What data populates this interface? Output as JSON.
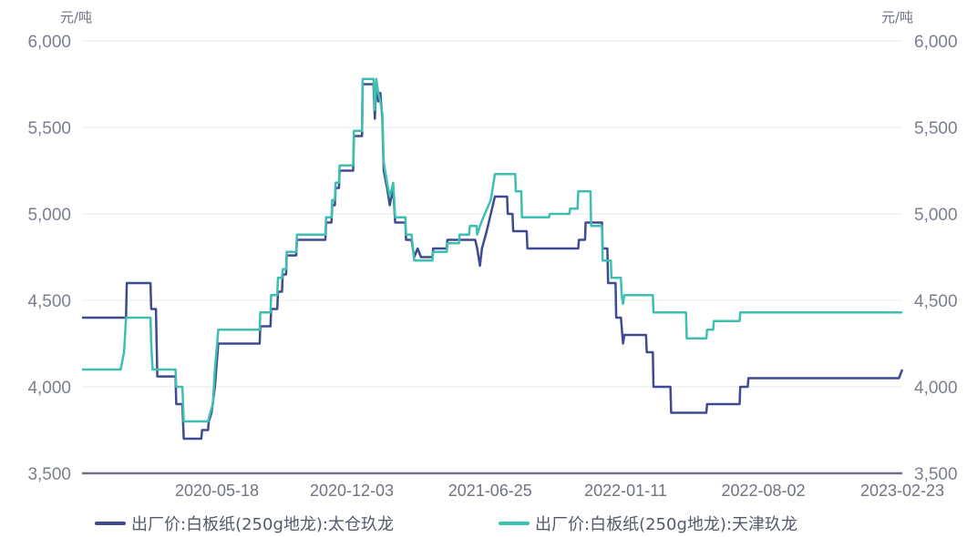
{
  "chart_data": {
    "type": "line",
    "y_unit_left": "元/吨",
    "y_unit_right": "元/吨",
    "ylim": [
      3500,
      6000
    ],
    "y_ticks": [
      "3,500",
      "4,000",
      "4,500",
      "5,000",
      "5,500",
      "6,000"
    ],
    "y_tick_values": [
      3500,
      4000,
      4500,
      5000,
      5500,
      6000
    ],
    "x_range": [
      "2019-11-01",
      "2023-02-23"
    ],
    "x_ticks": [
      "2020-05-18",
      "2020-12-03",
      "2021-06-25",
      "2022-01-11",
      "2022-08-02",
      "2023-02-23"
    ],
    "grid": true,
    "legend_position": "bottom",
    "series": [
      {
        "name": "出厂价:白板纸(250g地龙):太仓玖龙",
        "color": "#3f4a93",
        "points": [
          [
            "2019-11-01",
            4400
          ],
          [
            "2020-01-05",
            4400
          ],
          [
            "2020-01-06",
            4600
          ],
          [
            "2020-02-10",
            4600
          ],
          [
            "2020-02-11",
            4450
          ],
          [
            "2020-02-18",
            4450
          ],
          [
            "2020-02-20",
            4060
          ],
          [
            "2020-03-18",
            4060
          ],
          [
            "2020-03-19",
            3900
          ],
          [
            "2020-03-28",
            3900
          ],
          [
            "2020-03-30",
            3700
          ],
          [
            "2020-04-25",
            3700
          ],
          [
            "2020-04-26",
            3750
          ],
          [
            "2020-05-05",
            3750
          ],
          [
            "2020-05-06",
            3800
          ],
          [
            "2020-05-10",
            3850
          ],
          [
            "2020-05-15",
            4000
          ],
          [
            "2020-05-20",
            4250
          ],
          [
            "2020-07-20",
            4250
          ],
          [
            "2020-07-21",
            4350
          ],
          [
            "2020-08-05",
            4350
          ],
          [
            "2020-08-06",
            4450
          ],
          [
            "2020-08-15",
            4450
          ],
          [
            "2020-08-16",
            4550
          ],
          [
            "2020-08-22",
            4550
          ],
          [
            "2020-08-23",
            4650
          ],
          [
            "2020-08-28",
            4650
          ],
          [
            "2020-08-29",
            4760
          ],
          [
            "2020-09-12",
            4760
          ],
          [
            "2020-09-13",
            4850
          ],
          [
            "2020-10-25",
            4850
          ],
          [
            "2020-10-26",
            4950
          ],
          [
            "2020-11-03",
            4950
          ],
          [
            "2020-11-04",
            5050
          ],
          [
            "2020-11-08",
            5050
          ],
          [
            "2020-11-09",
            5150
          ],
          [
            "2020-11-14",
            5150
          ],
          [
            "2020-11-15",
            5250
          ],
          [
            "2020-12-05",
            5250
          ],
          [
            "2020-12-06",
            5450
          ],
          [
            "2020-12-18",
            5450
          ],
          [
            "2020-12-19",
            5750
          ],
          [
            "2021-01-04",
            5750
          ],
          [
            "2021-01-06",
            5550
          ],
          [
            "2021-01-08",
            5750
          ],
          [
            "2021-01-11",
            5650
          ],
          [
            "2021-01-14",
            5700
          ],
          [
            "2021-01-17",
            5550
          ],
          [
            "2021-01-19",
            5250
          ],
          [
            "2021-01-24",
            5150
          ],
          [
            "2021-01-28",
            5050
          ],
          [
            "2021-02-02",
            5150
          ],
          [
            "2021-02-05",
            4950
          ],
          [
            "2021-02-20",
            4950
          ],
          [
            "2021-02-21",
            4850
          ],
          [
            "2021-03-01",
            4850
          ],
          [
            "2021-03-05",
            4750
          ],
          [
            "2021-03-10",
            4800
          ],
          [
            "2021-03-15",
            4750
          ],
          [
            "2021-04-01",
            4750
          ],
          [
            "2021-04-02",
            4800
          ],
          [
            "2021-04-22",
            4800
          ],
          [
            "2021-04-23",
            4850
          ],
          [
            "2021-05-25",
            4850
          ],
          [
            "2021-06-03",
            4850
          ],
          [
            "2021-06-06",
            4800
          ],
          [
            "2021-06-10",
            4700
          ],
          [
            "2021-06-13",
            4800
          ],
          [
            "2021-06-20",
            4900
          ],
          [
            "2021-06-26",
            5000
          ],
          [
            "2021-07-02",
            5100
          ],
          [
            "2021-07-20",
            5100
          ],
          [
            "2021-07-21",
            5000
          ],
          [
            "2021-07-28",
            5000
          ],
          [
            "2021-07-29",
            4900
          ],
          [
            "2021-08-18",
            4900
          ],
          [
            "2021-08-19",
            4800
          ],
          [
            "2021-11-02",
            4800
          ],
          [
            "2021-11-03",
            4850
          ],
          [
            "2021-11-12",
            4850
          ],
          [
            "2021-11-13",
            4950
          ],
          [
            "2021-12-07",
            4950
          ],
          [
            "2021-12-08",
            4800
          ],
          [
            "2021-12-15",
            4800
          ],
          [
            "2021-12-16",
            4600
          ],
          [
            "2021-12-27",
            4600
          ],
          [
            "2021-12-28",
            4400
          ],
          [
            "2022-01-04",
            4400
          ],
          [
            "2022-01-07",
            4250
          ],
          [
            "2022-01-09",
            4300
          ],
          [
            "2022-02-10",
            4300
          ],
          [
            "2022-02-11",
            4200
          ],
          [
            "2022-02-20",
            4200
          ],
          [
            "2022-02-21",
            4000
          ],
          [
            "2022-03-18",
            4000
          ],
          [
            "2022-03-19",
            3850
          ],
          [
            "2022-05-10",
            3850
          ],
          [
            "2022-05-11",
            3900
          ],
          [
            "2022-06-28",
            3900
          ],
          [
            "2022-06-29",
            4000
          ],
          [
            "2022-07-10",
            4000
          ],
          [
            "2022-07-11",
            4050
          ],
          [
            "2023-02-18",
            4050
          ],
          [
            "2023-02-23",
            4100
          ]
        ]
      },
      {
        "name": "出厂价:白板纸(250g地龙):天津玖龙",
        "color": "#3dbfb2",
        "points": [
          [
            "2019-11-01",
            4100
          ],
          [
            "2019-12-28",
            4100
          ],
          [
            "2020-01-02",
            4200
          ],
          [
            "2020-01-05",
            4400
          ],
          [
            "2020-02-10",
            4400
          ],
          [
            "2020-02-11",
            4250
          ],
          [
            "2020-02-13",
            4100
          ],
          [
            "2020-03-18",
            4100
          ],
          [
            "2020-03-19",
            4000
          ],
          [
            "2020-03-28",
            4000
          ],
          [
            "2020-03-30",
            3800
          ],
          [
            "2020-05-05",
            3800
          ],
          [
            "2020-05-08",
            3850
          ],
          [
            "2020-05-12",
            3900
          ],
          [
            "2020-05-15",
            4100
          ],
          [
            "2020-05-20",
            4330
          ],
          [
            "2020-07-20",
            4330
          ],
          [
            "2020-07-21",
            4430
          ],
          [
            "2020-08-05",
            4430
          ],
          [
            "2020-08-06",
            4530
          ],
          [
            "2020-08-15",
            4530
          ],
          [
            "2020-08-16",
            4630
          ],
          [
            "2020-08-22",
            4630
          ],
          [
            "2020-08-23",
            4680
          ],
          [
            "2020-08-28",
            4680
          ],
          [
            "2020-08-29",
            4780
          ],
          [
            "2020-09-12",
            4780
          ],
          [
            "2020-09-13",
            4880
          ],
          [
            "2020-10-25",
            4880
          ],
          [
            "2020-10-26",
            4980
          ],
          [
            "2020-11-03",
            4980
          ],
          [
            "2020-11-04",
            5080
          ],
          [
            "2020-11-08",
            5080
          ],
          [
            "2020-11-09",
            5180
          ],
          [
            "2020-11-14",
            5180
          ],
          [
            "2020-11-15",
            5280
          ],
          [
            "2020-12-05",
            5280
          ],
          [
            "2020-12-06",
            5480
          ],
          [
            "2020-12-18",
            5480
          ],
          [
            "2020-12-19",
            5780
          ],
          [
            "2021-01-04",
            5780
          ],
          [
            "2021-01-06",
            5600
          ],
          [
            "2021-01-08",
            5780
          ],
          [
            "2021-01-11",
            5700
          ],
          [
            "2021-01-14",
            5650
          ],
          [
            "2021-01-17",
            5580
          ],
          [
            "2021-01-19",
            5300
          ],
          [
            "2021-01-24",
            5180
          ],
          [
            "2021-01-28",
            5100
          ],
          [
            "2021-02-02",
            5180
          ],
          [
            "2021-02-05",
            4980
          ],
          [
            "2021-02-20",
            4980
          ],
          [
            "2021-02-21",
            4880
          ],
          [
            "2021-03-01",
            4880
          ],
          [
            "2021-03-05",
            4730
          ],
          [
            "2021-04-01",
            4730
          ],
          [
            "2021-04-02",
            4780
          ],
          [
            "2021-04-22",
            4780
          ],
          [
            "2021-04-23",
            4830
          ],
          [
            "2021-05-10",
            4830
          ],
          [
            "2021-05-11",
            4880
          ],
          [
            "2021-05-25",
            4880
          ],
          [
            "2021-05-26",
            4930
          ],
          [
            "2021-06-05",
            4930
          ],
          [
            "2021-06-06",
            4880
          ],
          [
            "2021-06-10",
            4930
          ],
          [
            "2021-06-15",
            4980
          ],
          [
            "2021-06-26",
            5080
          ],
          [
            "2021-07-02",
            5230
          ],
          [
            "2021-08-01",
            5230
          ],
          [
            "2021-08-02",
            5130
          ],
          [
            "2021-08-10",
            5130
          ],
          [
            "2021-08-11",
            4980
          ],
          [
            "2021-09-20",
            4980
          ],
          [
            "2021-09-21",
            5000
          ],
          [
            "2021-10-20",
            5000
          ],
          [
            "2021-10-21",
            5030
          ],
          [
            "2021-11-01",
            5030
          ],
          [
            "2021-11-02",
            5130
          ],
          [
            "2021-11-20",
            5130
          ],
          [
            "2021-11-21",
            4930
          ],
          [
            "2021-12-07",
            4930
          ],
          [
            "2021-12-08",
            4730
          ],
          [
            "2021-12-20",
            4730
          ],
          [
            "2021-12-21",
            4630
          ],
          [
            "2022-01-04",
            4630
          ],
          [
            "2022-01-05",
            4530
          ],
          [
            "2022-01-07",
            4480
          ],
          [
            "2022-01-09",
            4530
          ],
          [
            "2022-02-20",
            4530
          ],
          [
            "2022-02-21",
            4430
          ],
          [
            "2022-04-10",
            4430
          ],
          [
            "2022-04-11",
            4280
          ],
          [
            "2022-05-10",
            4280
          ],
          [
            "2022-05-11",
            4330
          ],
          [
            "2022-05-20",
            4330
          ],
          [
            "2022-05-21",
            4380
          ],
          [
            "2022-06-28",
            4380
          ],
          [
            "2022-06-29",
            4430
          ],
          [
            "2023-02-23",
            4430
          ]
        ]
      }
    ]
  }
}
